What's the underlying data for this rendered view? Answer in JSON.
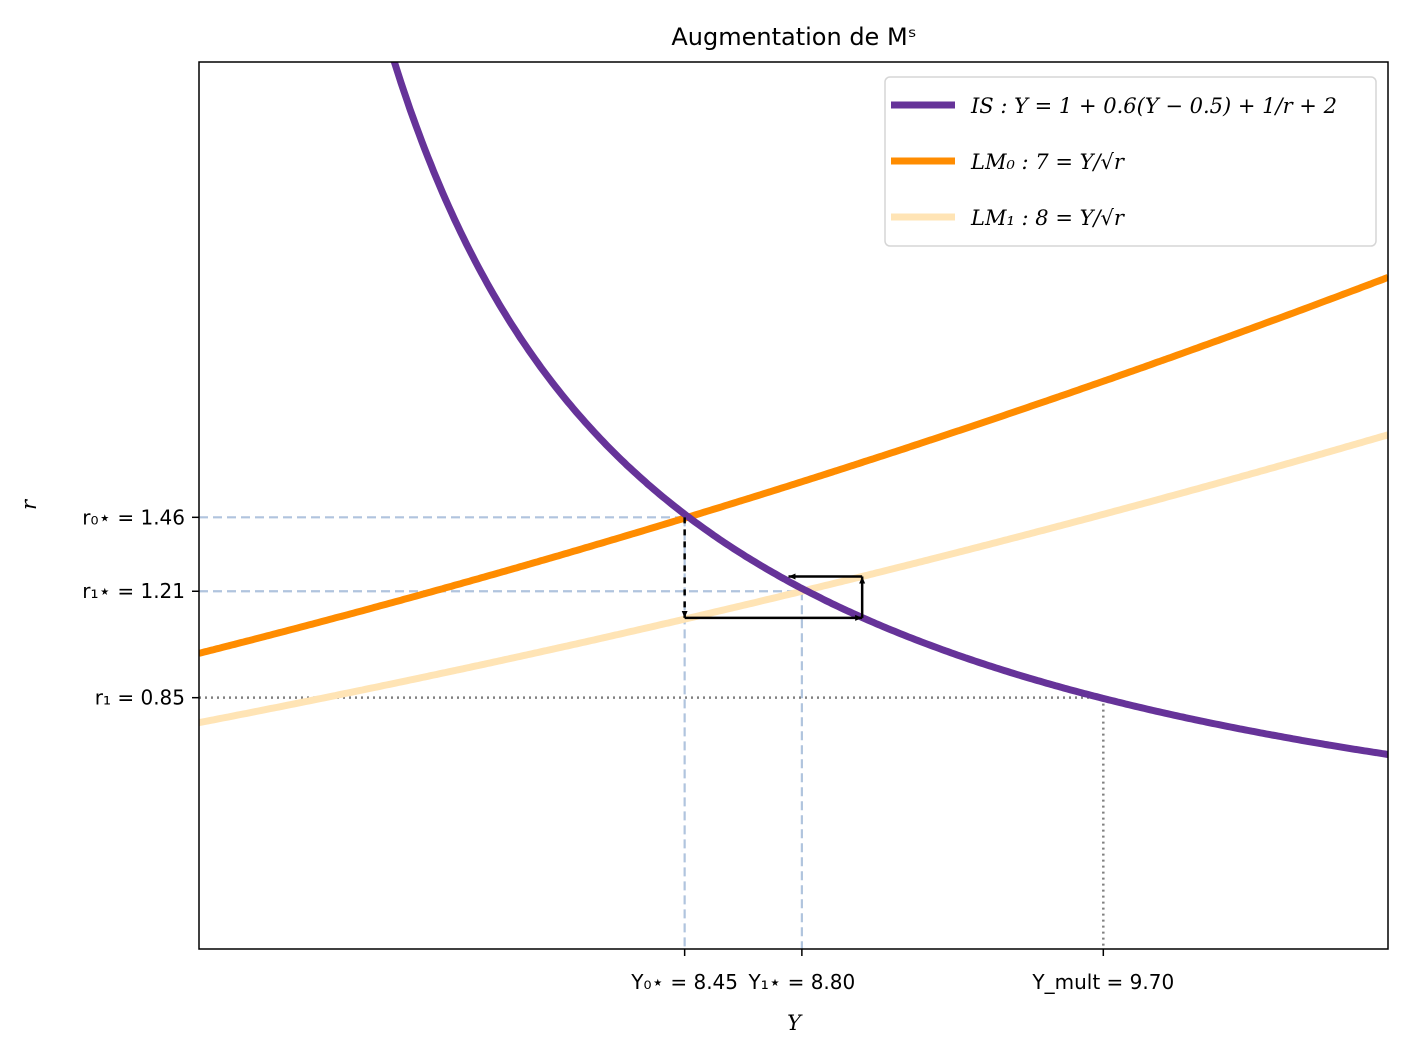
{
  "chart_data": {
    "type": "line",
    "title": "Augmentation de Mˢ",
    "xlabel": "Y",
    "ylabel": "r",
    "xlim": [
      7.0,
      10.55
    ],
    "ylim": [
      0.0,
      3.0
    ],
    "grid": false,
    "legend_position": "top-right",
    "series": [
      {
        "name": "IS : Y = 1 + 0.6(Y − 0.5) + 1/r + 2",
        "color": "#663399",
        "formula": "r = 1/(0.4Y - 2.7)"
      },
      {
        "name": "LM₀ : 7 = Y/√r",
        "color": "#ff8c00",
        "formula": "r = (Y/7)^2"
      },
      {
        "name": "LM₁ : 8 = Y/√r",
        "color": "#ffe4b5",
        "formula": "r = (Y/8)^2"
      }
    ],
    "xticks": [
      {
        "value": 8.45,
        "label": "Y₀⋆ = 8.45"
      },
      {
        "value": 8.8,
        "label": "Y₁⋆ = 8.80"
      },
      {
        "value": 9.7,
        "label": "Y_mult = 9.70"
      }
    ],
    "yticks": [
      {
        "value": 1.46,
        "label": "r₀⋆ = 1.46"
      },
      {
        "value": 1.21,
        "label": "r₁⋆ = 1.21"
      },
      {
        "value": 0.85,
        "label": "r₁ = 0.85"
      }
    ],
    "guides": [
      {
        "x": 8.45,
        "y": 1.46,
        "style": "dashed",
        "color": "#b0c4de"
      },
      {
        "x": 8.8,
        "y": 1.21,
        "style": "dashed",
        "color": "#b0c4de"
      },
      {
        "x": 9.7,
        "y": 0.85,
        "style": "dotted",
        "color": "#808080"
      }
    ],
    "adjustment_path": [
      [
        8.45,
        1.46
      ],
      [
        8.45,
        1.12
      ],
      [
        8.98,
        1.12
      ],
      [
        8.98,
        1.26
      ],
      [
        8.76,
        1.26
      ]
    ]
  }
}
